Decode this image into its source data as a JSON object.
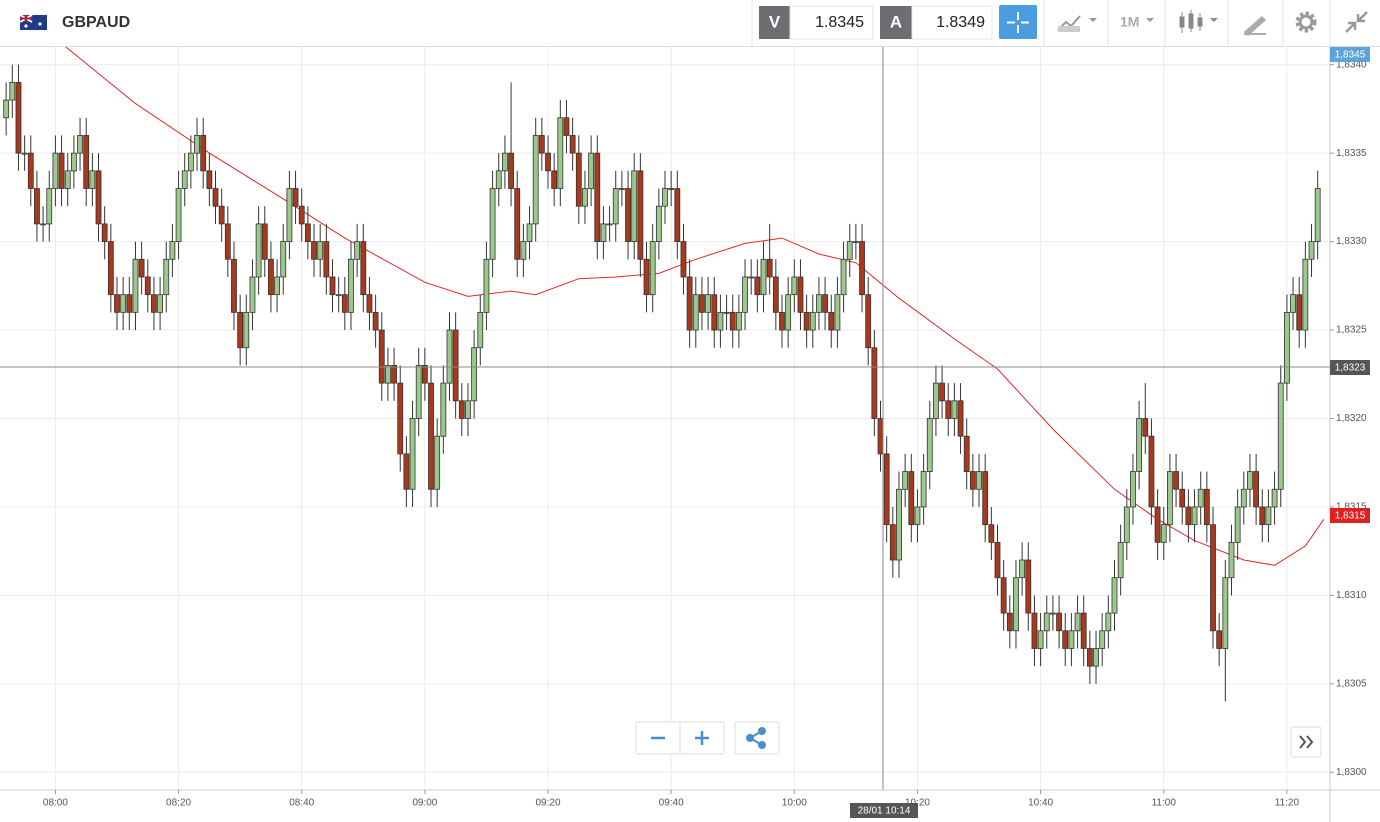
{
  "ui": {
    "symbol": "GBPAUD",
    "bid_label": "V",
    "bid": "1.8345",
    "ask_label": "A",
    "ask": "1.8349",
    "timeframe": "1M",
    "current_price": "1,8345",
    "crosshair_price": "1,8323",
    "last_price": "1,8315",
    "crosshair_time": "28/01 10:14"
  },
  "chart_data": {
    "type": "candlestick",
    "up_color": "#9cc98a",
    "down_color": "#a8391d",
    "grid": true,
    "xlim": [
      "07:51",
      "11:27"
    ],
    "xticks": [
      "08:00",
      "08:20",
      "08:40",
      "09:00",
      "09:20",
      "09:40",
      "10:00",
      "10:20",
      "10:40",
      "11:00",
      "11:20"
    ],
    "ylim": [
      1.8299,
      1.8341
    ],
    "yticks": [
      {
        "value": 1.83,
        "label": "1,8300"
      },
      {
        "value": 1.8305,
        "label": "1,8305"
      },
      {
        "value": 1.831,
        "label": "1,8310"
      },
      {
        "value": 1.8315,
        "label": "1,8315"
      },
      {
        "value": 1.832,
        "label": "1,8320"
      },
      {
        "value": 1.8325,
        "label": "1,8325"
      },
      {
        "value": 1.833,
        "label": "1,8330"
      },
      {
        "value": 1.8335,
        "label": "1,8335"
      },
      {
        "value": 1.834,
        "label": "1,8340"
      }
    ],
    "x": [
      "07:52",
      "07:53",
      "07:54",
      "07:55",
      "07:56",
      "07:57",
      "07:58",
      "07:59",
      "08:00",
      "08:01",
      "08:02",
      "08:03",
      "08:04",
      "08:05",
      "08:06",
      "08:07",
      "08:08",
      "08:09",
      "08:10",
      "08:11",
      "08:12",
      "08:13",
      "08:14",
      "08:15",
      "08:16",
      "08:17",
      "08:18",
      "08:19",
      "08:20",
      "08:21",
      "08:22",
      "08:23",
      "08:24",
      "08:25",
      "08:26",
      "08:27",
      "08:28",
      "08:29",
      "08:30",
      "08:31",
      "08:32",
      "08:33",
      "08:34",
      "08:35",
      "08:36",
      "08:37",
      "08:38",
      "08:39",
      "08:40",
      "08:41",
      "08:42",
      "08:43",
      "08:44",
      "08:45",
      "08:46",
      "08:47",
      "08:48",
      "08:49",
      "08:50",
      "08:51",
      "08:52",
      "08:53",
      "08:54",
      "08:55",
      "08:56",
      "08:57",
      "08:58",
      "08:59",
      "09:00",
      "09:01",
      "09:02",
      "09:03",
      "09:04",
      "09:05",
      "09:06",
      "09:07",
      "09:08",
      "09:09",
      "09:10",
      "09:11",
      "09:12",
      "09:13",
      "09:14",
      "09:15",
      "09:16",
      "09:17",
      "09:18",
      "09:19",
      "09:20",
      "09:21",
      "09:22",
      "09:23",
      "09:24",
      "09:25",
      "09:26",
      "09:27",
      "09:28",
      "09:29",
      "09:30",
      "09:31",
      "09:32",
      "09:33",
      "09:34",
      "09:35",
      "09:36",
      "09:37",
      "09:38",
      "09:39",
      "09:40",
      "09:41",
      "09:42",
      "09:43",
      "09:44",
      "09:45",
      "09:46",
      "09:47",
      "09:48",
      "09:49",
      "09:50",
      "09:51",
      "09:52",
      "09:53",
      "09:54",
      "09:55",
      "09:56",
      "09:57",
      "09:58",
      "09:59",
      "10:00",
      "10:01",
      "10:02",
      "10:03",
      "10:04",
      "10:05",
      "10:06",
      "10:07",
      "10:08",
      "10:09",
      "10:10",
      "10:11",
      "10:12",
      "10:13",
      "10:14",
      "10:15",
      "10:16",
      "10:17",
      "10:18",
      "10:19",
      "10:20",
      "10:21",
      "10:22",
      "10:23",
      "10:24",
      "10:25",
      "10:26",
      "10:27",
      "10:28",
      "10:29",
      "10:30",
      "10:31",
      "10:32",
      "10:33",
      "10:34",
      "10:35",
      "10:36",
      "10:37",
      "10:38",
      "10:39",
      "10:40",
      "10:41",
      "10:42",
      "10:43",
      "10:44",
      "10:45",
      "10:46",
      "10:47",
      "10:48",
      "10:49",
      "10:50",
      "10:51",
      "10:52",
      "10:53",
      "10:54",
      "10:55",
      "10:56",
      "10:57",
      "10:58",
      "10:59",
      "11:00",
      "11:01",
      "11:02",
      "11:03",
      "11:04",
      "11:05",
      "11:06",
      "11:07",
      "11:08",
      "11:09",
      "11:10",
      "11:11",
      "11:12",
      "11:13",
      "11:14",
      "11:15",
      "11:16",
      "11:17",
      "11:18",
      "11:19",
      "11:20",
      "11:21",
      "11:22",
      "11:23",
      "11:24",
      "11:25"
    ],
    "open": [
      1.8337,
      1.8338,
      1.8339,
      1.8335,
      1.8335,
      1.8333,
      1.8331,
      1.8331,
      1.8333,
      1.8335,
      1.8333,
      1.8334,
      1.8335,
      1.8336,
      1.8333,
      1.8334,
      1.8331,
      1.833,
      1.8327,
      1.8326,
      1.8327,
      1.8326,
      1.8329,
      1.8328,
      1.8327,
      1.8326,
      1.8327,
      1.8329,
      1.833,
      1.8333,
      1.8334,
      1.8335,
      1.8336,
      1.8334,
      1.8333,
      1.8332,
      1.8331,
      1.8329,
      1.8326,
      1.8324,
      1.8326,
      1.8328,
      1.8331,
      1.8329,
      1.8327,
      1.8328,
      1.833,
      1.8333,
      1.8332,
      1.8331,
      1.833,
      1.8329,
      1.833,
      1.8328,
      1.8327,
      1.8327,
      1.8326,
      1.8329,
      1.833,
      1.8327,
      1.8326,
      1.8325,
      1.8322,
      1.8323,
      1.8322,
      1.8318,
      1.8316,
      1.832,
      1.8323,
      1.8322,
      1.8316,
      1.8319,
      1.8322,
      1.8325,
      1.8321,
      1.832,
      1.8321,
      1.8324,
      1.8326,
      1.8329,
      1.8333,
      1.8334,
      1.8335,
      1.8333,
      1.8329,
      1.833,
      1.8331,
      1.8336,
      1.8335,
      1.8334,
      1.8333,
      1.8337,
      1.8336,
      1.8335,
      1.8332,
      1.8333,
      1.8335,
      1.833,
      1.8331,
      1.8331,
      1.8333,
      1.8333,
      1.833,
      1.8334,
      1.8329,
      1.8327,
      1.833,
      1.8332,
      1.8333,
      1.8333,
      1.833,
      1.8328,
      1.8325,
      1.8327,
      1.8326,
      1.8327,
      1.8325,
      1.8326,
      1.8326,
      1.8325,
      1.8326,
      1.8328,
      1.8328,
      1.8327,
      1.8329,
      1.8328,
      1.8326,
      1.8325,
      1.8327,
      1.8328,
      1.8326,
      1.8325,
      1.8326,
      1.8327,
      1.8326,
      1.8325,
      1.8327,
      1.8329,
      1.833,
      1.833,
      1.8327,
      1.8324,
      1.832,
      1.8318,
      1.8314,
      1.8312,
      1.8316,
      1.8317,
      1.8314,
      1.8315,
      1.8317,
      1.832,
      1.8322,
      1.8321,
      1.832,
      1.8321,
      1.8319,
      1.8317,
      1.8316,
      1.8317,
      1.8314,
      1.8313,
      1.8311,
      1.8309,
      1.8308,
      1.8311,
      1.8312,
      1.8309,
      1.8307,
      1.8308,
      1.8309,
      1.8309,
      1.8308,
      1.8307,
      1.8308,
      1.8309,
      1.8307,
      1.8306,
      1.8307,
      1.8308,
      1.8309,
      1.8311,
      1.8313,
      1.8315,
      1.8317,
      1.832,
      1.8319,
      1.8315,
      1.8313,
      1.8314,
      1.8317,
      1.8316,
      1.8315,
      1.8314,
      1.8315,
      1.8316,
      1.8314,
      1.8308,
      1.8307,
      1.8311,
      1.8313,
      1.8315,
      1.8316,
      1.8317,
      1.8315,
      1.8314,
      1.8315,
      1.8316,
      1.8322,
      1.8326,
      1.8327,
      1.8325,
      1.8329,
      1.833
    ],
    "high": [
      1.8339,
      1.834,
      1.834,
      1.8336,
      1.8336,
      1.8334,
      1.8332,
      1.8334,
      1.8336,
      1.8336,
      1.8335,
      1.8336,
      1.8337,
      1.8337,
      1.8335,
      1.8335,
      1.8332,
      1.8331,
      1.8328,
      1.8328,
      1.8328,
      1.833,
      1.833,
      1.8329,
      1.8328,
      1.8328,
      1.833,
      1.8331,
      1.8334,
      1.8335,
      1.8336,
      1.8337,
      1.8337,
      1.8335,
      1.8334,
      1.8333,
      1.8332,
      1.833,
      1.8327,
      1.8327,
      1.8329,
      1.8332,
      1.8332,
      1.833,
      1.8329,
      1.8331,
      1.8334,
      1.8334,
      1.8333,
      1.8332,
      1.8331,
      1.8331,
      1.8331,
      1.8329,
      1.8328,
      1.8328,
      1.833,
      1.8331,
      1.8331,
      1.8328,
      1.8327,
      1.8326,
      1.8324,
      1.8324,
      1.8323,
      1.8319,
      1.8321,
      1.8324,
      1.8324,
      1.8323,
      1.832,
      1.8323,
      1.8326,
      1.8326,
      1.8322,
      1.8322,
      1.8325,
      1.8327,
      1.833,
      1.8334,
      1.8335,
      1.8336,
      1.8339,
      1.8334,
      1.8331,
      1.8332,
      1.8337,
      1.8337,
      1.8336,
      1.8335,
      1.8338,
      1.8338,
      1.8337,
      1.8336,
      1.8334,
      1.8336,
      1.8336,
      1.8332,
      1.8332,
      1.8334,
      1.8334,
      1.8334,
      1.8335,
      1.8335,
      1.833,
      1.8331,
      1.8333,
      1.8334,
      1.8334,
      1.8334,
      1.8331,
      1.8329,
      1.8328,
      1.8328,
      1.8328,
      1.8328,
      1.8327,
      1.8327,
      1.8327,
      1.8327,
      1.8329,
      1.8329,
      1.8329,
      1.833,
      1.8331,
      1.8329,
      1.8327,
      1.8328,
      1.8329,
      1.8329,
      1.8327,
      1.8327,
      1.8328,
      1.8328,
      1.8327,
      1.8328,
      1.833,
      1.8331,
      1.8331,
      1.8331,
      1.8328,
      1.8325,
      1.8321,
      1.8319,
      1.8315,
      1.8317,
      1.8318,
      1.8318,
      1.8316,
      1.8318,
      1.8321,
      1.8323,
      1.8323,
      1.8322,
      1.8322,
      1.8322,
      1.832,
      1.8318,
      1.8318,
      1.8318,
      1.8315,
      1.8314,
      1.8312,
      1.831,
      1.8312,
      1.8313,
      1.8313,
      1.831,
      1.8309,
      1.831,
      1.831,
      1.831,
      1.8309,
      1.8309,
      1.831,
      1.831,
      1.8308,
      1.8308,
      1.8309,
      1.831,
      1.8312,
      1.8314,
      1.8316,
      1.8318,
      1.8321,
      1.8322,
      1.832,
      1.8316,
      1.8315,
      1.8318,
      1.8318,
      1.8317,
      1.8316,
      1.8316,
      1.8317,
      1.8317,
      1.8315,
      1.8309,
      1.8312,
      1.8314,
      1.8316,
      1.8317,
      1.8318,
      1.8318,
      1.8316,
      1.8316,
      1.8317,
      1.8323,
      1.8327,
      1.8328,
      1.8328,
      1.833,
      1.8331,
      1.8334
    ],
    "low": [
      1.8336,
      1.8337,
      1.8334,
      1.8334,
      1.8332,
      1.833,
      1.833,
      1.833,
      1.8332,
      1.8332,
      1.8332,
      1.8333,
      1.8334,
      1.8332,
      1.8332,
      1.833,
      1.8329,
      1.8326,
      1.8325,
      1.8325,
      1.8325,
      1.8325,
      1.8327,
      1.8326,
      1.8325,
      1.8325,
      1.8326,
      1.8328,
      1.8329,
      1.8332,
      1.8333,
      1.8334,
      1.8333,
      1.8332,
      1.8331,
      1.833,
      1.8328,
      1.8325,
      1.8323,
      1.8323,
      1.8325,
      1.8327,
      1.8328,
      1.8326,
      1.8326,
      1.8327,
      1.8329,
      1.8331,
      1.833,
      1.8329,
      1.8328,
      1.8328,
      1.8327,
      1.8326,
      1.8326,
      1.8325,
      1.8325,
      1.8328,
      1.8326,
      1.8325,
      1.8324,
      1.8321,
      1.8321,
      1.8321,
      1.8317,
      1.8315,
      1.8315,
      1.8319,
      1.8321,
      1.8315,
      1.8315,
      1.8318,
      1.8321,
      1.832,
      1.8319,
      1.8319,
      1.832,
      1.8323,
      1.8325,
      1.8328,
      1.8332,
      1.8333,
      1.8332,
      1.8328,
      1.8328,
      1.8329,
      1.833,
      1.8334,
      1.8333,
      1.8332,
      1.8332,
      1.8335,
      1.8334,
      1.8331,
      1.8331,
      1.8332,
      1.8329,
      1.8329,
      1.833,
      1.833,
      1.8332,
      1.8329,
      1.8329,
      1.8328,
      1.8326,
      1.8326,
      1.8329,
      1.8331,
      1.8332,
      1.8329,
      1.8327,
      1.8324,
      1.8324,
      1.8325,
      1.8325,
      1.8324,
      1.8324,
      1.8325,
      1.8324,
      1.8324,
      1.8325,
      1.8327,
      1.8326,
      1.8326,
      1.8327,
      1.8325,
      1.8324,
      1.8324,
      1.8326,
      1.8325,
      1.8324,
      1.8324,
      1.8325,
      1.8325,
      1.8324,
      1.8324,
      1.8326,
      1.8328,
      1.8329,
      1.8326,
      1.8323,
      1.8319,
      1.8317,
      1.8313,
      1.8311,
      1.8311,
      1.8315,
      1.8313,
      1.8313,
      1.8314,
      1.8316,
      1.8319,
      1.832,
      1.8319,
      1.8319,
      1.8318,
      1.8316,
      1.8315,
      1.8315,
      1.8313,
      1.8312,
      1.831,
      1.8308,
      1.8307,
      1.8307,
      1.831,
      1.8308,
      1.8306,
      1.8306,
      1.8307,
      1.8308,
      1.8307,
      1.8306,
      1.8306,
      1.8307,
      1.8306,
      1.8305,
      1.8305,
      1.8306,
      1.8307,
      1.8308,
      1.831,
      1.8312,
      1.8314,
      1.8316,
      1.8318,
      1.8314,
      1.8312,
      1.8312,
      1.8313,
      1.8315,
      1.8314,
      1.8313,
      1.8313,
      1.8314,
      1.8313,
      1.8307,
      1.8306,
      1.8304,
      1.831,
      1.8312,
      1.8314,
      1.8315,
      1.8314,
      1.8313,
      1.8313,
      1.8314,
      1.8315,
      1.8321,
      1.8325,
      1.8324,
      1.8324,
      1.8328,
      1.8329
    ],
    "close": [
      1.8338,
      1.8339,
      1.8335,
      1.8335,
      1.8333,
      1.8331,
      1.8331,
      1.8333,
      1.8335,
      1.8333,
      1.8334,
      1.8335,
      1.8336,
      1.8333,
      1.8334,
      1.8331,
      1.833,
      1.8327,
      1.8326,
      1.8327,
      1.8326,
      1.8329,
      1.8328,
      1.8327,
      1.8326,
      1.8327,
      1.8329,
      1.833,
      1.8333,
      1.8334,
      1.8335,
      1.8336,
      1.8334,
      1.8333,
      1.8332,
      1.8331,
      1.8329,
      1.8326,
      1.8324,
      1.8326,
      1.8328,
      1.8331,
      1.8329,
      1.8327,
      1.8328,
      1.833,
      1.8333,
      1.8332,
      1.8331,
      1.833,
      1.8329,
      1.833,
      1.8328,
      1.8327,
      1.8327,
      1.8326,
      1.8329,
      1.833,
      1.8327,
      1.8326,
      1.8325,
      1.8322,
      1.8323,
      1.8322,
      1.8318,
      1.8316,
      1.832,
      1.8323,
      1.8322,
      1.8316,
      1.8319,
      1.8322,
      1.8325,
      1.8321,
      1.832,
      1.8321,
      1.8324,
      1.8326,
      1.8329,
      1.8333,
      1.8334,
      1.8335,
      1.8333,
      1.8329,
      1.833,
      1.8331,
      1.8336,
      1.8335,
      1.8334,
      1.8333,
      1.8337,
      1.8336,
      1.8335,
      1.8332,
      1.8333,
      1.8335,
      1.833,
      1.8331,
      1.8331,
      1.8333,
      1.8333,
      1.833,
      1.8334,
      1.8329,
      1.8327,
      1.833,
      1.8332,
      1.8333,
      1.8333,
      1.833,
      1.8328,
      1.8325,
      1.8327,
      1.8326,
      1.8327,
      1.8325,
      1.8326,
      1.8326,
      1.8325,
      1.8326,
      1.8328,
      1.8328,
      1.8327,
      1.8329,
      1.8328,
      1.8326,
      1.8325,
      1.8327,
      1.8328,
      1.8326,
      1.8325,
      1.8326,
      1.8327,
      1.8326,
      1.8325,
      1.8327,
      1.8329,
      1.833,
      1.833,
      1.8327,
      1.8324,
      1.832,
      1.8318,
      1.8314,
      1.8312,
      1.8316,
      1.8317,
      1.8314,
      1.8315,
      1.8317,
      1.832,
      1.8322,
      1.8321,
      1.832,
      1.8321,
      1.8319,
      1.8317,
      1.8316,
      1.8317,
      1.8314,
      1.8313,
      1.8311,
      1.8309,
      1.8308,
      1.8311,
      1.8312,
      1.8309,
      1.8307,
      1.8308,
      1.8309,
      1.8309,
      1.8308,
      1.8307,
      1.8308,
      1.8309,
      1.8307,
      1.8306,
      1.8307,
      1.8308,
      1.8309,
      1.8311,
      1.8313,
      1.8315,
      1.8317,
      1.832,
      1.8319,
      1.8315,
      1.8313,
      1.8314,
      1.8317,
      1.8316,
      1.8315,
      1.8314,
      1.8315,
      1.8316,
      1.8314,
      1.8308,
      1.8307,
      1.8311,
      1.8313,
      1.8315,
      1.8316,
      1.8317,
      1.8315,
      1.8314,
      1.8315,
      1.8316,
      1.8322,
      1.8326,
      1.8327,
      1.8325,
      1.8329,
      1.833,
      1.8333
    ],
    "moving_average": {
      "color": "#e0292b",
      "x": [
        "08:01",
        "08:13",
        "08:25",
        "08:38",
        "08:47",
        "09:00",
        "09:07",
        "09:14",
        "09:18",
        "09:25",
        "09:31",
        "09:38",
        "09:44",
        "09:52",
        "09:58",
        "10:04",
        "10:10",
        "10:17",
        "10:26",
        "10:33",
        "10:42",
        "10:52",
        "10:59",
        "11:05",
        "11:13",
        "11:18",
        "11:23",
        "11:26"
      ],
      "values": [
        1.83412,
        1.83378,
        1.8335,
        1.83322,
        1.83302,
        1.83277,
        1.83269,
        1.83272,
        1.8327,
        1.83279,
        1.8328,
        1.83282,
        1.8329,
        1.83299,
        1.83302,
        1.83293,
        1.83288,
        1.83268,
        1.83245,
        1.83228,
        1.83194,
        1.8316,
        1.83143,
        1.83131,
        1.8312,
        1.83117,
        1.83128,
        1.83143
      ]
    }
  }
}
